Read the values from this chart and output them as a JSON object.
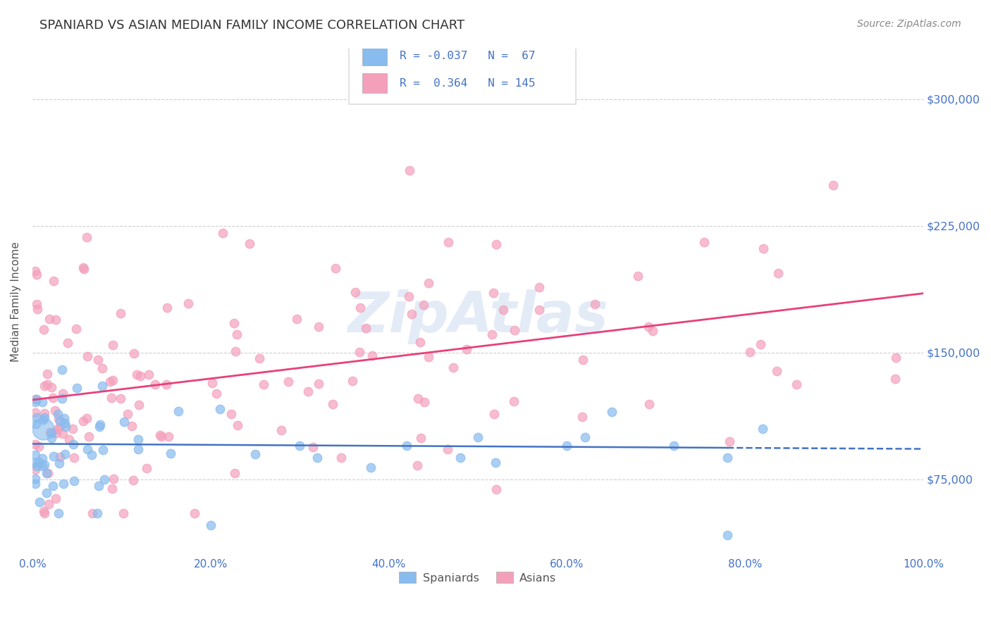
{
  "title": "SPANIARD VS ASIAN MEDIAN FAMILY INCOME CORRELATION CHART",
  "source": "Source: ZipAtlas.com",
  "ylabel": "Median Family Income",
  "xlim": [
    0.0,
    1.0
  ],
  "ylim": [
    30000,
    330000
  ],
  "xticks": [
    0.0,
    0.2,
    0.4,
    0.6,
    0.8,
    1.0
  ],
  "xticklabels": [
    "0.0%",
    "20.0%",
    "40.0%",
    "60.0%",
    "80.0%",
    "100.0%"
  ],
  "yticks": [
    75000,
    150000,
    225000,
    300000
  ],
  "yticklabels": [
    "$75,000",
    "$150,000",
    "$225,000",
    "$300,000"
  ],
  "spaniard_color": "#88BBEE",
  "asian_color": "#F4A0BB",
  "spaniard_line_color": "#4472C4",
  "asian_line_color": "#E8407A",
  "spaniard_R": -0.037,
  "spaniard_N": 67,
  "asian_R": 0.364,
  "asian_N": 145,
  "background_color": "#FFFFFF",
  "grid_color": "#BBBBBB",
  "title_color": "#333333",
  "axis_label_color": "#555555",
  "tick_color": "#4472C4",
  "source_color": "#888888",
  "legend_box_color": "#DDDDDD",
  "watermark_color": "#C8D8F0",
  "spaniard_line_ystart": 96000,
  "spaniard_line_yend": 93000,
  "asian_line_ystart": 122000,
  "asian_line_yend": 185000
}
